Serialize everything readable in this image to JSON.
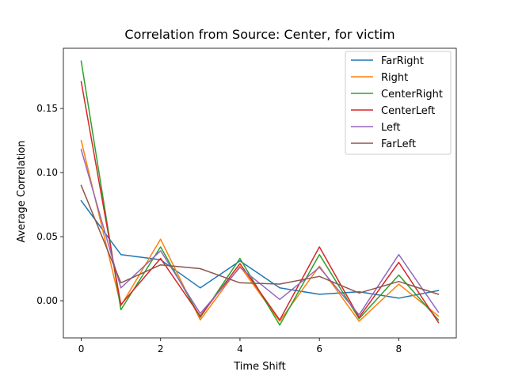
{
  "chart_data": {
    "type": "line",
    "title": "Correlation from Source: Center, for victim",
    "xlabel": "Time Shift",
    "ylabel": "Average Correlation",
    "x": [
      0,
      1,
      2,
      3,
      4,
      5,
      6,
      7,
      8,
      9
    ],
    "xlim": [
      -0.45,
      9.45
    ],
    "ylim": [
      -0.029,
      0.197
    ],
    "xticks": [
      0,
      2,
      4,
      6,
      8
    ],
    "xtick_labels": [
      "0",
      "2",
      "4",
      "6",
      "8"
    ],
    "yticks": [
      0.0,
      0.05,
      0.1,
      0.15
    ],
    "ytick_labels": [
      "0.00",
      "0.05",
      "0.10",
      "0.15"
    ],
    "grid": false,
    "legend_position": "top-right",
    "series": [
      {
        "name": "FarRight",
        "color": "#1f77b4",
        "values": [
          0.078,
          0.036,
          0.032,
          0.01,
          0.031,
          0.01,
          0.005,
          0.007,
          0.002,
          0.008
        ]
      },
      {
        "name": "Right",
        "color": "#ff7f0e",
        "values": [
          0.125,
          -0.004,
          0.048,
          -0.015,
          0.027,
          -0.016,
          0.027,
          -0.016,
          0.013,
          -0.012
        ]
      },
      {
        "name": "CenterRight",
        "color": "#2ca02c",
        "values": [
          0.187,
          -0.007,
          0.042,
          -0.013,
          0.033,
          -0.019,
          0.036,
          -0.014,
          0.02,
          -0.015
        ]
      },
      {
        "name": "CenterLeft",
        "color": "#d62728",
        "values": [
          0.171,
          -0.003,
          0.033,
          -0.012,
          0.029,
          -0.015,
          0.042,
          -0.013,
          0.03,
          -0.017
        ]
      },
      {
        "name": "Left",
        "color": "#9467bd",
        "values": [
          0.118,
          0.01,
          0.039,
          -0.01,
          0.026,
          0.001,
          0.026,
          -0.011,
          0.036,
          -0.009
        ]
      },
      {
        "name": "FarLeft",
        "color": "#8c564b",
        "values": [
          0.09,
          0.014,
          0.028,
          0.025,
          0.014,
          0.013,
          0.019,
          0.006,
          0.015,
          0.005
        ]
      }
    ]
  }
}
